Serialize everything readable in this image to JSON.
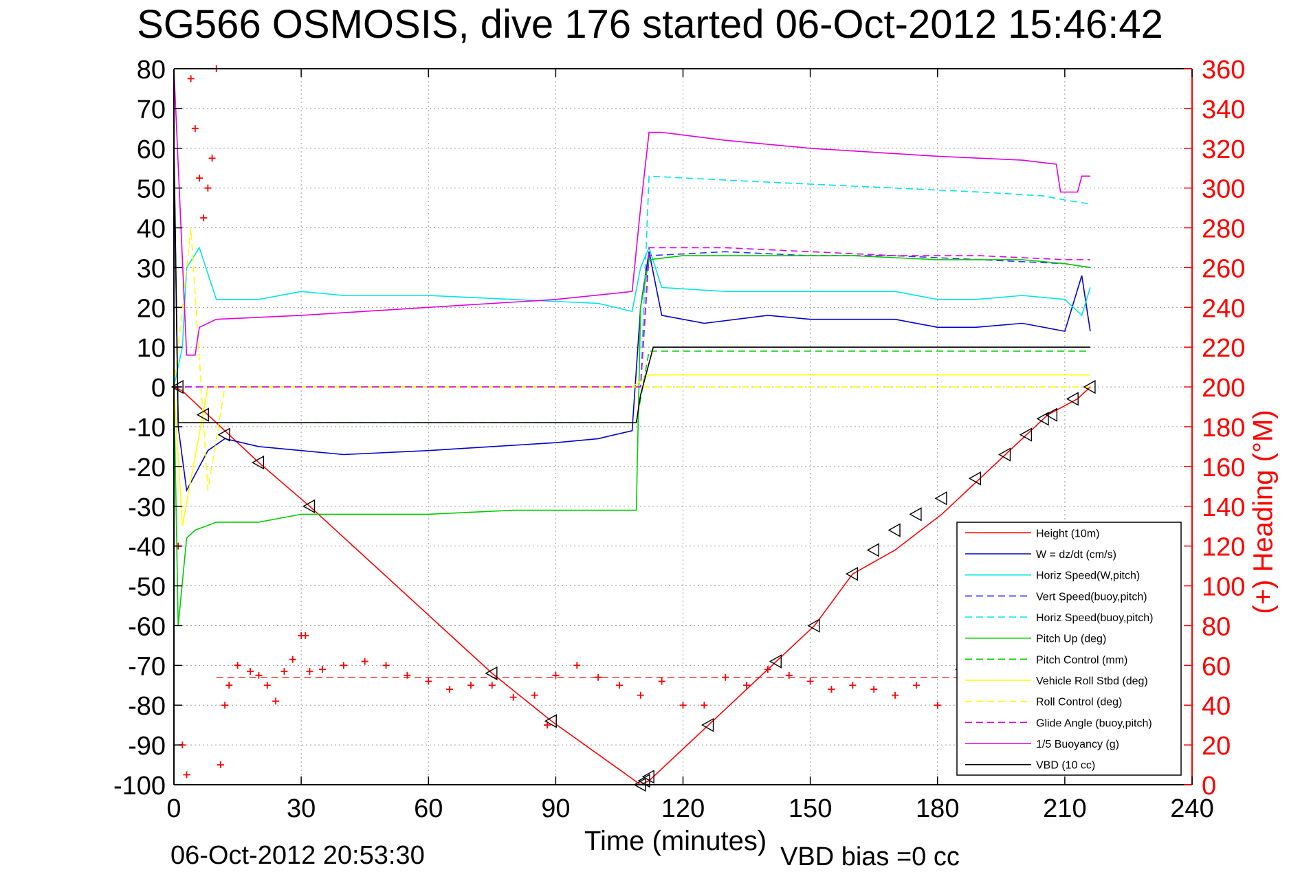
{
  "title": "SG566 OSMOSIS, dive 176 started 06-Oct-2012 15:46:42",
  "xlabel": "Time (minutes)",
  "datestamp": "06-Oct-2012 20:53:30",
  "vbd_bias": "VBD bias =0 cc",
  "ylabel_right": "(+) Heading (°M)",
  "chart_data": {
    "type": "line",
    "title": "SG566 OSMOSIS, dive 176 started 06-Oct-2012 15:46:42",
    "xlabel": "Time (minutes)",
    "ylabel": "",
    "ylabel_right": "(+) Heading (°M)",
    "xlim": [
      0,
      240
    ],
    "ylim": [
      -100,
      80
    ],
    "ylim_right": [
      0,
      360
    ],
    "x_ticks": [
      0,
      30,
      60,
      90,
      120,
      150,
      180,
      210,
      240
    ],
    "y_ticks": [
      80,
      70,
      60,
      50,
      40,
      30,
      20,
      10,
      0,
      -10,
      -20,
      -30,
      -40,
      -50,
      -60,
      -70,
      -80,
      -90,
      -100
    ],
    "y_ticks_right": [
      360,
      340,
      320,
      300,
      280,
      260,
      240,
      220,
      200,
      180,
      160,
      140,
      120,
      100,
      80,
      60,
      40,
      20,
      0
    ],
    "grid": true,
    "legend_position": "bottom-right",
    "colors": {
      "red": "#ff0000",
      "blue": "#0000cc",
      "cyan": "#00e5e5",
      "green": "#00cc00",
      "yellow": "#ffff00",
      "magenta": "#e000e0",
      "black": "#000000"
    },
    "series": [
      {
        "name": "Height (10m)",
        "color": "#ff0000",
        "style": "solid",
        "x": [
          0,
          2,
          20,
          32,
          75,
          89,
          110,
          112,
          126,
          142,
          151,
          160,
          170,
          181,
          190,
          196,
          201,
          206,
          213,
          216
        ],
        "y": [
          0,
          -1,
          -19,
          -30,
          -72,
          -84,
          -100,
          -99,
          -85,
          -69,
          -60,
          -47,
          -41,
          -32,
          -23,
          -17,
          -12,
          -7,
          -3,
          0
        ]
      },
      {
        "name": "W = dz/dt (cm/s)",
        "color": "#0000cc",
        "style": "solid",
        "x": [
          0,
          1,
          3,
          5,
          8,
          12,
          20,
          30,
          40,
          60,
          75,
          90,
          100,
          108,
          110,
          112,
          115,
          125,
          140,
          150,
          160,
          170,
          180,
          189,
          200,
          210,
          214,
          216
        ],
        "y": [
          60,
          -10,
          -26,
          -22,
          -16,
          -13,
          -15,
          -16,
          -17,
          -16,
          -15,
          -14,
          -13,
          -11,
          20,
          34,
          18,
          16,
          18,
          17,
          17,
          17,
          15,
          15,
          16,
          14,
          28,
          14
        ]
      },
      {
        "name": "Horiz Speed(W,pitch)",
        "color": "#00e5e5",
        "style": "solid",
        "x": [
          0,
          2,
          3,
          6,
          10,
          20,
          30,
          40,
          60,
          80,
          100,
          108,
          110,
          112,
          115,
          130,
          150,
          170,
          180,
          189,
          200,
          210,
          214,
          216
        ],
        "y": [
          0,
          10,
          30,
          35,
          22,
          22,
          24,
          23,
          23,
          22,
          21,
          19,
          30,
          35,
          25,
          24,
          24,
          24,
          22,
          22,
          23,
          22,
          18,
          25
        ]
      },
      {
        "name": "Vert Speed(buoy,pitch)",
        "color": "#3333ff",
        "style": "dashed",
        "x": [
          0,
          110,
          112,
          130,
          150,
          170,
          190,
          210,
          216
        ],
        "y": [
          0,
          0,
          33,
          34,
          33,
          33,
          32,
          31,
          30
        ]
      },
      {
        "name": "Horiz Speed(buoy,pitch)",
        "color": "#00e5e5",
        "style": "dashed",
        "x": [
          0,
          110,
          112,
          130,
          150,
          170,
          190,
          205,
          210,
          216
        ],
        "y": [
          0,
          0,
          53,
          52,
          51,
          50,
          49,
          48,
          47,
          46
        ]
      },
      {
        "name": "Pitch Up (deg)",
        "color": "#00cc00",
        "style": "solid",
        "x": [
          0,
          1,
          3,
          5,
          10,
          20,
          30,
          40,
          60,
          80,
          100,
          109,
          110,
          112,
          120,
          140,
          160,
          180,
          200,
          210,
          216
        ],
        "y": [
          0,
          -60,
          -38,
          -36,
          -34,
          -34,
          -32,
          -32,
          -32,
          -31,
          -31,
          -31,
          20,
          32,
          33,
          33,
          33,
          32,
          32,
          31,
          30
        ]
      },
      {
        "name": "Pitch Control (mm)",
        "color": "#00cc00",
        "style": "dashed",
        "x": [
          2,
          109,
          112,
          216
        ],
        "y": [
          -9,
          -9,
          9,
          9
        ]
      },
      {
        "name": "Vehicle Roll Stbd (deg)",
        "color": "#ffff00",
        "style": "solid",
        "x": [
          0,
          2,
          8,
          20,
          40,
          60,
          75,
          90,
          108,
          112,
          130,
          150,
          170,
          190,
          210,
          216
        ],
        "y": [
          0,
          -35,
          0,
          0,
          0,
          0,
          0,
          0,
          0,
          3,
          3,
          3,
          3,
          3,
          3,
          3
        ]
      },
      {
        "name": "Roll Control (deg)",
        "color": "#ffff00",
        "style": "dashed",
        "x": [
          0,
          4,
          8,
          12,
          20,
          40,
          60,
          75,
          90,
          108,
          216
        ],
        "y": [
          0,
          40,
          -26,
          0,
          0,
          0,
          0,
          0,
          0,
          0,
          0
        ]
      },
      {
        "name": "Glide Angle (buoy,pitch)",
        "color": "#e000e0",
        "style": "dashed",
        "x": [
          0,
          110,
          112,
          130,
          150,
          170,
          190,
          210,
          216
        ],
        "y": [
          0,
          0,
          35,
          35,
          34,
          33,
          33,
          32,
          32
        ]
      },
      {
        "name": "1/5 Buoyancy (g)",
        "color": "#e000e0",
        "style": "solid",
        "x": [
          0,
          3,
          5,
          6,
          10,
          30,
          60,
          90,
          108,
          110,
          112,
          115,
          130,
          150,
          180,
          200,
          208,
          209,
          213,
          214,
          216
        ],
        "y": [
          80,
          8,
          8,
          15,
          17,
          18,
          20,
          22,
          24,
          45,
          64,
          64,
          62,
          60,
          58,
          57,
          56,
          49,
          49,
          53,
          53
        ]
      },
      {
        "name": "VBD (10 cc)",
        "color": "#000000",
        "style": "solid",
        "x": [
          0,
          1,
          2,
          109,
          110,
          113,
          216
        ],
        "y": [
          62,
          -9,
          -9,
          -9,
          -2,
          10,
          10
        ]
      }
    ],
    "heading": {
      "axis": "right",
      "color": "#ff0000",
      "marker": "+",
      "x": [
        1,
        2,
        3,
        4,
        5,
        6,
        7,
        8,
        9,
        10,
        11,
        12,
        13,
        15,
        18,
        20,
        22,
        24,
        26,
        28,
        30,
        31,
        32,
        35,
        40,
        45,
        50,
        55,
        60,
        65,
        70,
        75,
        80,
        85,
        88,
        90,
        95,
        100,
        105,
        110,
        115,
        120,
        125,
        130,
        135,
        140,
        145,
        150,
        155,
        160,
        165,
        170,
        175,
        180,
        185
      ],
      "y": [
        120,
        20,
        5,
        355,
        330,
        305,
        285,
        300,
        315,
        360,
        10,
        40,
        50,
        60,
        57,
        55,
        50,
        42,
        57,
        63,
        75,
        75,
        57,
        58,
        60,
        62,
        60,
        55,
        52,
        48,
        50,
        50,
        44,
        45,
        30,
        55,
        60,
        54,
        50,
        45,
        52,
        40,
        40,
        54,
        50,
        58,
        55,
        52,
        48,
        50,
        48,
        45,
        50,
        40,
        58
      ],
      "reference": 54
    },
    "markers": {
      "color": "#000000",
      "x": [
        1,
        7,
        12,
        20,
        32,
        75,
        89,
        110,
        111,
        112,
        126,
        142,
        151,
        160,
        165,
        170,
        175,
        181,
        189,
        196,
        201,
        205,
        207,
        212,
        216
      ],
      "y": [
        0,
        -7,
        -12,
        -19,
        -30,
        -72,
        -84,
        -100,
        -99,
        -98,
        -85,
        -69,
        -60,
        -47,
        -41,
        -36,
        -32,
        -28,
        -23,
        -17,
        -12,
        -8,
        -7,
        -3,
        0
      ]
    }
  }
}
